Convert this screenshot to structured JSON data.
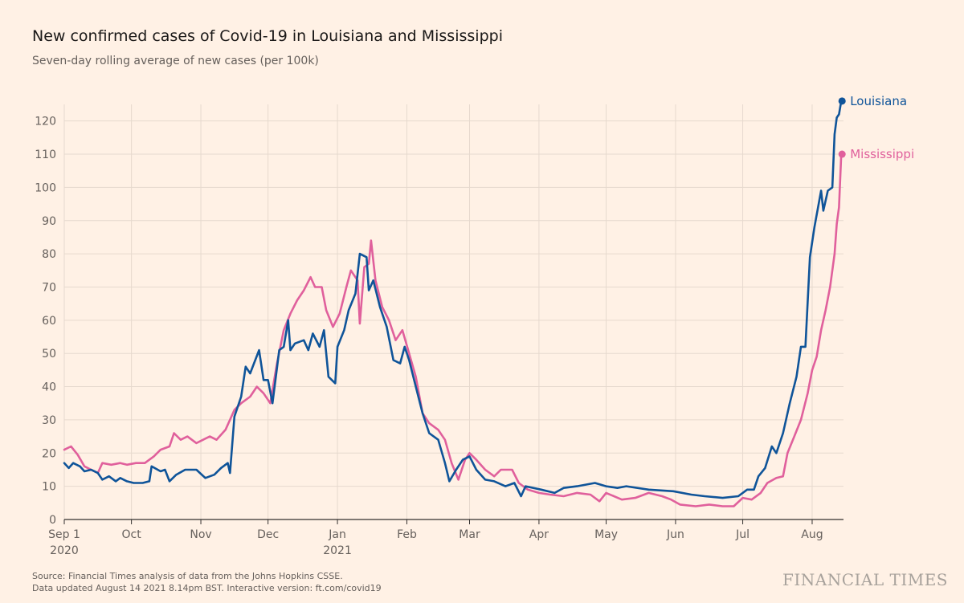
{
  "title": "New confirmed cases of Covid-19 in Louisiana and Mississippi",
  "subtitle": "Seven-day rolling average of new cases (per 100k)",
  "footer": {
    "source": "Source: Financial Times analysis of data from the Johns Hopkins CSSE.",
    "updated": "Data updated August 14 2021 8.14pm BST. Interactive version: ft.com/covid19"
  },
  "brand": "FINANCIAL TIMES",
  "colors": {
    "background": "#fff1e5",
    "louisiana": "#0f5499",
    "mississippi": "#e0609c",
    "grid": "#e6d9ce",
    "axis": "#33302e"
  },
  "chart_data": {
    "type": "line",
    "title": "New confirmed cases of Covid-19 in Louisiana and Mississippi",
    "subtitle": "Seven-day rolling average of new cases (per 100k)",
    "xlabel": "",
    "ylabel": "",
    "xlim": [
      "2020-09-01",
      "2021-08-15"
    ],
    "ylim": [
      0,
      125
    ],
    "yticks": [
      0,
      10,
      20,
      30,
      40,
      50,
      60,
      70,
      80,
      90,
      100,
      110,
      120
    ],
    "xticks": [
      {
        "date": "2020-09-01",
        "label": "Sep 1",
        "sublabel": "2020"
      },
      {
        "date": "2020-10-01",
        "label": "Oct",
        "sublabel": ""
      },
      {
        "date": "2020-11-01",
        "label": "Nov",
        "sublabel": ""
      },
      {
        "date": "2020-12-01",
        "label": "Dec",
        "sublabel": ""
      },
      {
        "date": "2021-01-01",
        "label": "Jan",
        "sublabel": "2021"
      },
      {
        "date": "2021-02-01",
        "label": "Feb",
        "sublabel": ""
      },
      {
        "date": "2021-03-01",
        "label": "Mar",
        "sublabel": ""
      },
      {
        "date": "2021-04-01",
        "label": "Apr",
        "sublabel": ""
      },
      {
        "date": "2021-05-01",
        "label": "May",
        "sublabel": ""
      },
      {
        "date": "2021-06-01",
        "label": "Jun",
        "sublabel": ""
      },
      {
        "date": "2021-07-01",
        "label": "Jul",
        "sublabel": ""
      },
      {
        "date": "2021-08-01",
        "label": "Aug",
        "sublabel": ""
      }
    ],
    "grid": true,
    "legend": "direct labels at line ends",
    "series": [
      {
        "name": "Louisiana",
        "color": "#0f5499",
        "points": [
          [
            "2020-09-01",
            17
          ],
          [
            "2020-09-03",
            15.5
          ],
          [
            "2020-09-05",
            17
          ],
          [
            "2020-09-08",
            16
          ],
          [
            "2020-09-10",
            14.5
          ],
          [
            "2020-09-13",
            15
          ],
          [
            "2020-09-16",
            14
          ],
          [
            "2020-09-18",
            12
          ],
          [
            "2020-09-21",
            13
          ],
          [
            "2020-09-24",
            11.5
          ],
          [
            "2020-09-26",
            12.5
          ],
          [
            "2020-09-29",
            11.5
          ],
          [
            "2020-10-02",
            11
          ],
          [
            "2020-10-06",
            11
          ],
          [
            "2020-10-09",
            11.5
          ],
          [
            "2020-10-10",
            16
          ],
          [
            "2020-10-14",
            14.5
          ],
          [
            "2020-10-16",
            15
          ],
          [
            "2020-10-18",
            11.5
          ],
          [
            "2020-10-21",
            13.5
          ],
          [
            "2020-10-25",
            15
          ],
          [
            "2020-10-30",
            15
          ],
          [
            "2020-11-03",
            12.5
          ],
          [
            "2020-11-07",
            13.5
          ],
          [
            "2020-11-10",
            15.5
          ],
          [
            "2020-11-13",
            17
          ],
          [
            "2020-11-14",
            14
          ],
          [
            "2020-11-16",
            31
          ],
          [
            "2020-11-19",
            37
          ],
          [
            "2020-11-21",
            46
          ],
          [
            "2020-11-23",
            44
          ],
          [
            "2020-11-27",
            51
          ],
          [
            "2020-11-29",
            42
          ],
          [
            "2020-12-01",
            42
          ],
          [
            "2020-12-03",
            35
          ],
          [
            "2020-12-06",
            51
          ],
          [
            "2020-12-08",
            52
          ],
          [
            "2020-12-10",
            60
          ],
          [
            "2020-12-11",
            51
          ],
          [
            "2020-12-13",
            53
          ],
          [
            "2020-12-17",
            54
          ],
          [
            "2020-12-19",
            51
          ],
          [
            "2020-12-21",
            56
          ],
          [
            "2020-12-24",
            52
          ],
          [
            "2020-12-26",
            57
          ],
          [
            "2020-12-28",
            43
          ],
          [
            "2020-12-31",
            41
          ],
          [
            "2021-01-01",
            52
          ],
          [
            "2021-01-04",
            57
          ],
          [
            "2021-01-06",
            63
          ],
          [
            "2021-01-09",
            68
          ],
          [
            "2021-01-11",
            80
          ],
          [
            "2021-01-14",
            79
          ],
          [
            "2021-01-15",
            69
          ],
          [
            "2021-01-17",
            72
          ],
          [
            "2021-01-20",
            64
          ],
          [
            "2021-01-23",
            58
          ],
          [
            "2021-01-26",
            48
          ],
          [
            "2021-01-29",
            47
          ],
          [
            "2021-01-31",
            52
          ],
          [
            "2021-02-02",
            48
          ],
          [
            "2021-02-05",
            40
          ],
          [
            "2021-02-08",
            32
          ],
          [
            "2021-02-11",
            26
          ],
          [
            "2021-02-15",
            24
          ],
          [
            "2021-02-18",
            17
          ],
          [
            "2021-02-20",
            11.5
          ],
          [
            "2021-02-23",
            15
          ],
          [
            "2021-02-26",
            18
          ],
          [
            "2021-03-01",
            19
          ],
          [
            "2021-03-04",
            15
          ],
          [
            "2021-03-08",
            12
          ],
          [
            "2021-03-12",
            11.5
          ],
          [
            "2021-03-17",
            10
          ],
          [
            "2021-03-21",
            11
          ],
          [
            "2021-03-24",
            7
          ],
          [
            "2021-03-26",
            10
          ],
          [
            "2021-04-02",
            9
          ],
          [
            "2021-04-08",
            8
          ],
          [
            "2021-04-12",
            9.5
          ],
          [
            "2021-04-18",
            10
          ],
          [
            "2021-04-26",
            11
          ],
          [
            "2021-05-01",
            10
          ],
          [
            "2021-05-06",
            9.5
          ],
          [
            "2021-05-10",
            10
          ],
          [
            "2021-05-20",
            9
          ],
          [
            "2021-05-31",
            8.5
          ],
          [
            "2021-06-08",
            7.5
          ],
          [
            "2021-06-14",
            7
          ],
          [
            "2021-06-22",
            6.5
          ],
          [
            "2021-06-29",
            7
          ],
          [
            "2021-07-03",
            9
          ],
          [
            "2021-07-06",
            9
          ],
          [
            "2021-07-08",
            13
          ],
          [
            "2021-07-11",
            15.5
          ],
          [
            "2021-07-14",
            22
          ],
          [
            "2021-07-16",
            20
          ],
          [
            "2021-07-19",
            26
          ],
          [
            "2021-07-22",
            35
          ],
          [
            "2021-07-25",
            43
          ],
          [
            "2021-07-27",
            52
          ],
          [
            "2021-07-29",
            52
          ],
          [
            "2021-07-31",
            79
          ],
          [
            "2021-08-02",
            88
          ],
          [
            "2021-08-05",
            99
          ],
          [
            "2021-08-06",
            93
          ],
          [
            "2021-08-08",
            99
          ],
          [
            "2021-08-10",
            100
          ],
          [
            "2021-08-11",
            116
          ],
          [
            "2021-08-12",
            121
          ],
          [
            "2021-08-13",
            122
          ],
          [
            "2021-08-14",
            126
          ]
        ],
        "end_value": 126
      },
      {
        "name": "Mississippi",
        "color": "#e0609c",
        "points": [
          [
            "2020-09-01",
            21
          ],
          [
            "2020-09-04",
            22
          ],
          [
            "2020-09-07",
            19.5
          ],
          [
            "2020-09-10",
            16
          ],
          [
            "2020-09-13",
            15
          ],
          [
            "2020-09-16",
            14
          ],
          [
            "2020-09-18",
            17
          ],
          [
            "2020-09-22",
            16.5
          ],
          [
            "2020-09-26",
            17
          ],
          [
            "2020-09-29",
            16.5
          ],
          [
            "2020-10-03",
            17
          ],
          [
            "2020-10-07",
            17
          ],
          [
            "2020-10-11",
            19
          ],
          [
            "2020-10-14",
            21
          ],
          [
            "2020-10-18",
            22
          ],
          [
            "2020-10-20",
            26
          ],
          [
            "2020-10-23",
            24
          ],
          [
            "2020-10-26",
            25
          ],
          [
            "2020-10-30",
            23
          ],
          [
            "2020-11-02",
            24
          ],
          [
            "2020-11-05",
            25
          ],
          [
            "2020-11-08",
            24
          ],
          [
            "2020-11-12",
            27
          ],
          [
            "2020-11-16",
            33
          ],
          [
            "2020-11-19",
            35
          ],
          [
            "2020-11-23",
            37
          ],
          [
            "2020-11-26",
            40
          ],
          [
            "2020-11-29",
            38
          ],
          [
            "2020-12-02",
            35
          ],
          [
            "2020-12-05",
            47
          ],
          [
            "2020-12-08",
            57
          ],
          [
            "2020-12-11",
            62
          ],
          [
            "2020-12-14",
            66
          ],
          [
            "2020-12-17",
            69
          ],
          [
            "2020-12-20",
            73
          ],
          [
            "2020-12-22",
            70
          ],
          [
            "2020-12-25",
            70
          ],
          [
            "2020-12-27",
            63
          ],
          [
            "2020-12-30",
            58
          ],
          [
            "2021-01-02",
            62
          ],
          [
            "2021-01-05",
            70
          ],
          [
            "2021-01-07",
            75
          ],
          [
            "2021-01-10",
            72
          ],
          [
            "2021-01-11",
            59
          ],
          [
            "2021-01-13",
            76
          ],
          [
            "2021-01-15",
            77
          ],
          [
            "2021-01-16",
            84
          ],
          [
            "2021-01-18",
            72
          ],
          [
            "2021-01-21",
            64
          ],
          [
            "2021-01-24",
            60
          ],
          [
            "2021-01-27",
            54
          ],
          [
            "2021-01-30",
            57
          ],
          [
            "2021-02-02",
            50
          ],
          [
            "2021-02-05",
            43
          ],
          [
            "2021-02-08",
            32
          ],
          [
            "2021-02-11",
            29
          ],
          [
            "2021-02-15",
            27
          ],
          [
            "2021-02-18",
            24
          ],
          [
            "2021-02-21",
            17
          ],
          [
            "2021-02-24",
            12
          ],
          [
            "2021-02-27",
            18
          ],
          [
            "2021-03-01",
            20
          ],
          [
            "2021-03-04",
            18
          ],
          [
            "2021-03-08",
            15
          ],
          [
            "2021-03-12",
            13
          ],
          [
            "2021-03-15",
            15
          ],
          [
            "2021-03-20",
            15
          ],
          [
            "2021-03-23",
            11
          ],
          [
            "2021-03-27",
            9
          ],
          [
            "2021-04-01",
            8
          ],
          [
            "2021-04-06",
            7.5
          ],
          [
            "2021-04-12",
            7
          ],
          [
            "2021-04-18",
            8
          ],
          [
            "2021-04-24",
            7.5
          ],
          [
            "2021-04-28",
            5.5
          ],
          [
            "2021-05-01",
            8
          ],
          [
            "2021-05-08",
            6
          ],
          [
            "2021-05-14",
            6.5
          ],
          [
            "2021-05-20",
            8
          ],
          [
            "2021-05-26",
            7
          ],
          [
            "2021-05-30",
            6
          ],
          [
            "2021-06-03",
            4.5
          ],
          [
            "2021-06-10",
            4
          ],
          [
            "2021-06-16",
            4.5
          ],
          [
            "2021-06-22",
            4
          ],
          [
            "2021-06-27",
            4
          ],
          [
            "2021-07-01",
            6.5
          ],
          [
            "2021-07-05",
            6
          ],
          [
            "2021-07-09",
            8
          ],
          [
            "2021-07-12",
            11
          ],
          [
            "2021-07-16",
            12.5
          ],
          [
            "2021-07-19",
            13
          ],
          [
            "2021-07-21",
            20
          ],
          [
            "2021-07-24",
            25
          ],
          [
            "2021-07-27",
            30
          ],
          [
            "2021-07-30",
            38
          ],
          [
            "2021-08-01",
            45
          ],
          [
            "2021-08-03",
            49
          ],
          [
            "2021-08-05",
            57
          ],
          [
            "2021-08-07",
            63
          ],
          [
            "2021-08-09",
            70
          ],
          [
            "2021-08-11",
            80
          ],
          [
            "2021-08-12",
            89
          ],
          [
            "2021-08-13",
            94
          ],
          [
            "2021-08-14",
            110
          ]
        ],
        "end_value": 110
      }
    ]
  }
}
